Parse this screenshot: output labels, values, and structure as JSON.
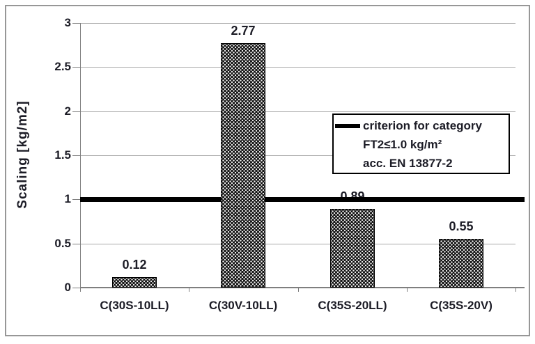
{
  "chart_data": {
    "type": "bar",
    "title": "",
    "categories": [
      "C(30S-10LL)",
      "C(30V-10LL)",
      "C(35S-20LL)",
      "C(35S-20V)"
    ],
    "values": [
      0.12,
      2.77,
      0.89,
      0.55
    ],
    "data_labels": [
      "0.12",
      "2.77",
      "0.89",
      "0.55"
    ],
    "xlabel": "",
    "ylabel": "Scaling [kg/m2]",
    "ylim": [
      0,
      3
    ],
    "yticks": [
      0,
      0.5,
      1,
      1.5,
      2,
      2.5,
      3
    ],
    "ytick_labels": [
      "0",
      "0.5",
      "1",
      "1.5",
      "2",
      "2.5",
      "3"
    ],
    "grid": true,
    "legend_position": "inside-right",
    "reference_line": {
      "value": 1.0,
      "color": "#000000"
    },
    "colors": {
      "bar_fill_pattern": "black-with-white-dot-lattice",
      "bar_border": "#000000",
      "gridline": "#a8a8a8",
      "axis": "#7f7f7f",
      "text": "#1c1c26",
      "frame_border": "#979797",
      "background": "#ffffff"
    },
    "legend": {
      "lines": [
        "criterion for category",
        "FT2≤1.0 kg/m²",
        "acc. EN 13877-2"
      ]
    }
  }
}
